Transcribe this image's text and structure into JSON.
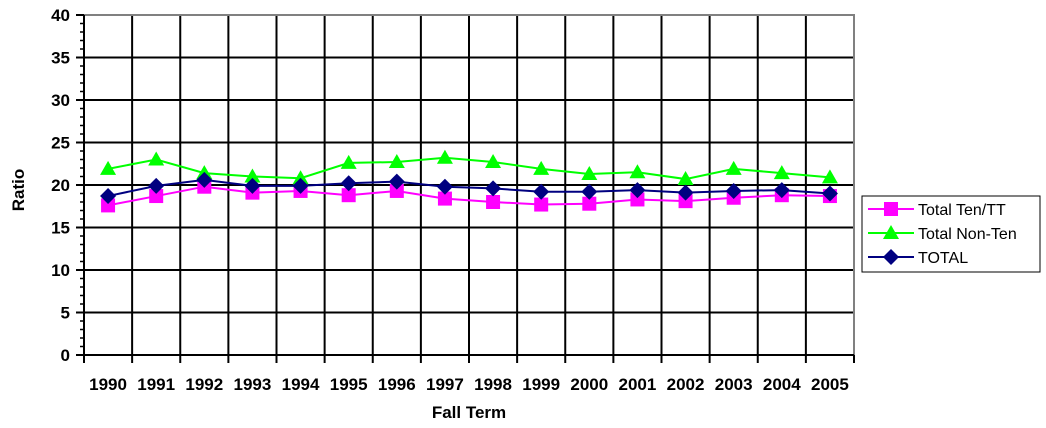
{
  "chart_data": {
    "type": "line",
    "title": "",
    "xlabel": "Fall Term",
    "ylabel": "Ratio",
    "ylim": [
      0,
      40
    ],
    "yticks": [
      0,
      5,
      10,
      15,
      20,
      25,
      30,
      35,
      40
    ],
    "grid": true,
    "legend_position": "right",
    "categories": [
      "1990",
      "1991",
      "1992",
      "1993",
      "1994",
      "1995",
      "1996",
      "1997",
      "1998",
      "1999",
      "2000",
      "2001",
      "2002",
      "2003",
      "2004",
      "2005"
    ],
    "series": [
      {
        "name": "Total Ten/TT",
        "color": "#ff00ff",
        "marker": "square",
        "values": [
          17.6,
          18.7,
          19.8,
          19.1,
          19.3,
          18.8,
          19.3,
          18.4,
          18.0,
          17.7,
          17.8,
          18.3,
          18.1,
          18.5,
          18.8,
          18.7
        ]
      },
      {
        "name": "Total Non-Ten",
        "color": "#00ff00",
        "marker": "triangle",
        "values": [
          21.9,
          23.0,
          21.4,
          21.0,
          20.8,
          22.6,
          22.7,
          23.2,
          22.7,
          21.9,
          21.3,
          21.5,
          20.7,
          21.9,
          21.4,
          20.9
        ]
      },
      {
        "name": "TOTAL",
        "color": "#000080",
        "marker": "diamond",
        "values": [
          18.7,
          19.9,
          20.6,
          19.9,
          19.9,
          20.2,
          20.4,
          19.8,
          19.6,
          19.2,
          19.2,
          19.4,
          19.1,
          19.3,
          19.4,
          19.0
        ]
      }
    ]
  }
}
